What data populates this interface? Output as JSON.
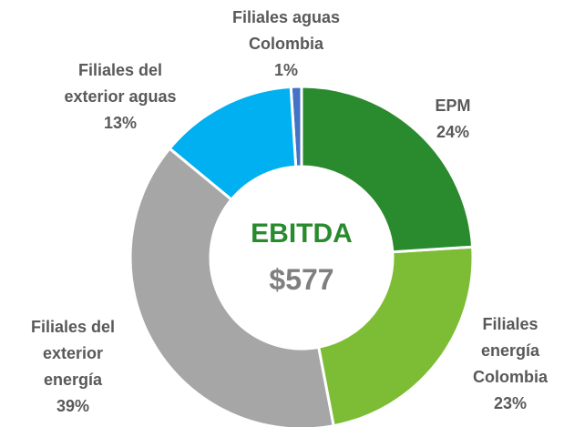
{
  "chart_data": {
    "type": "donut",
    "center_title": "EBITDA",
    "center_value": "$577",
    "categories": [
      "EPM",
      "Filiales energía Colombia",
      "Filiales del exterior energía",
      "Filiales del exterior aguas",
      "Filiales aguas Colombia"
    ],
    "values": [
      24,
      23,
      39,
      13,
      1
    ],
    "value_labels": [
      "24%",
      "23%",
      "39%",
      "13%",
      "1%"
    ],
    "colors": [
      "#2a8a2e",
      "#7dbd35",
      "#a6a6a6",
      "#00b0f0",
      "#4472c4"
    ]
  }
}
